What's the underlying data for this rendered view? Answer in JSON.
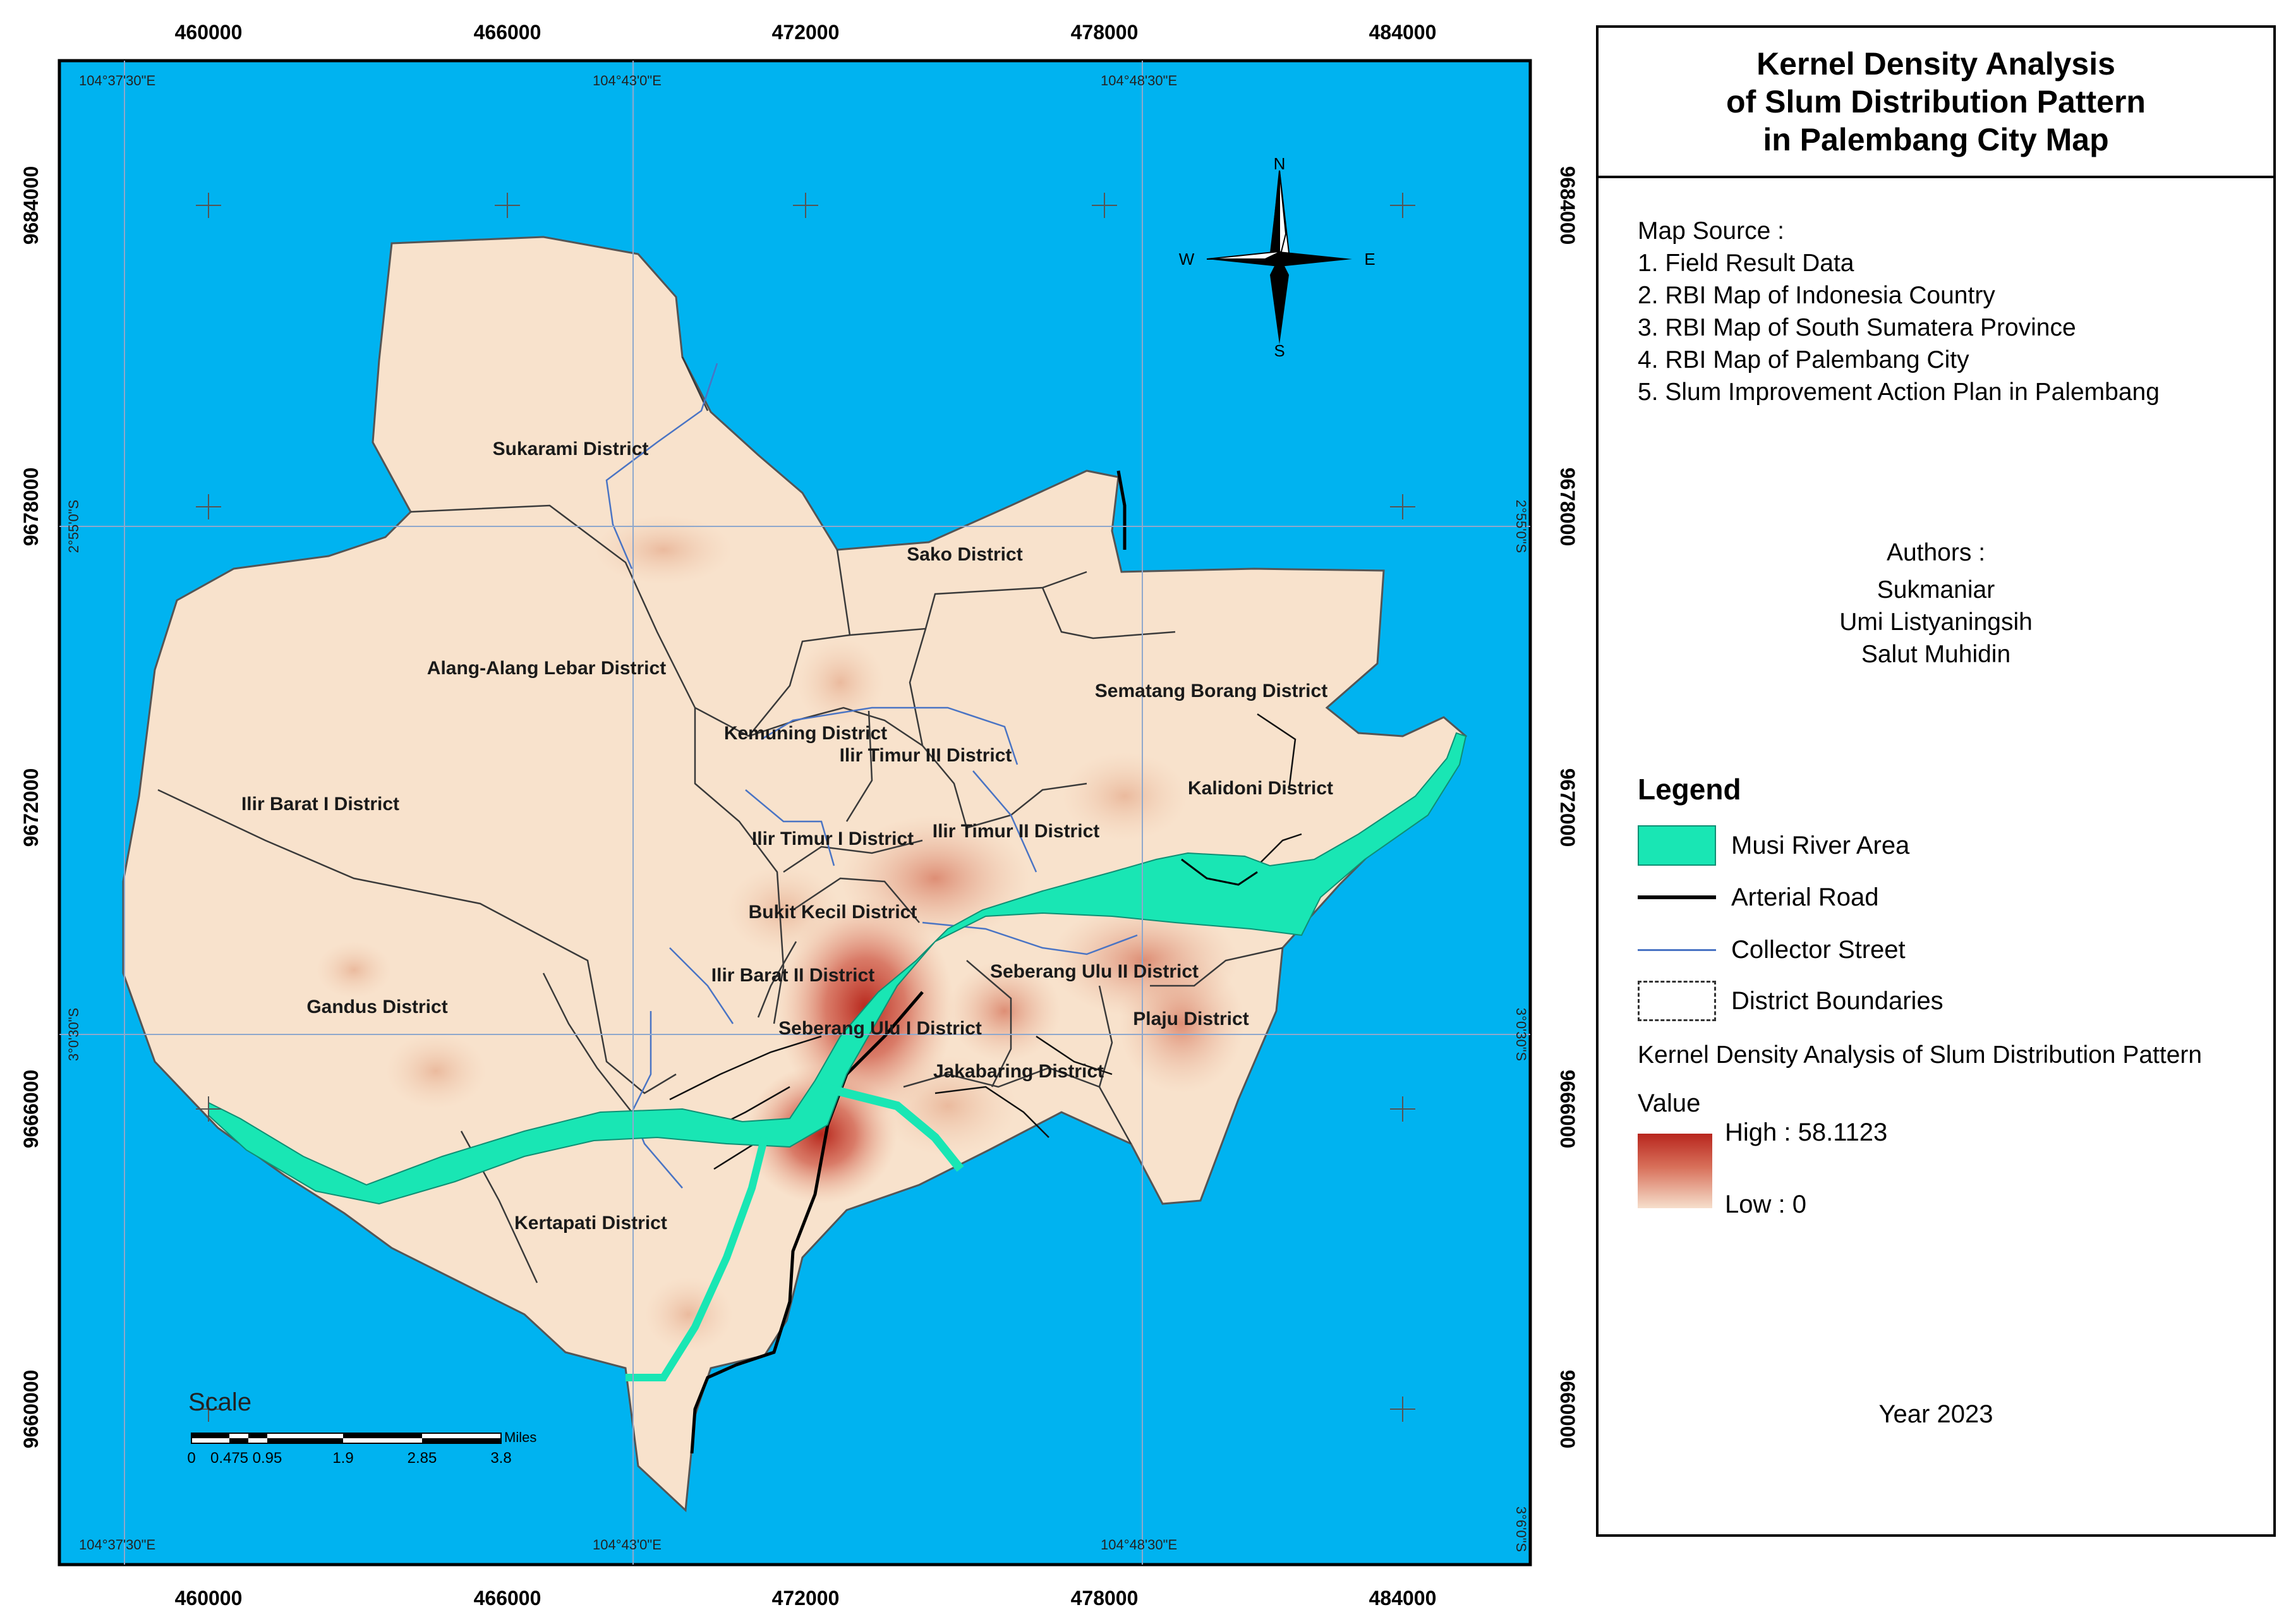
{
  "map": {
    "grid_x_labels": [
      "460000",
      "466000",
      "472000",
      "478000",
      "484000"
    ],
    "grid_y_labels": [
      "9684000",
      "9678000",
      "9672000",
      "9666000",
      "9660000"
    ],
    "lon_labels": [
      "104°37'30\"E",
      "104°43'0\"E",
      "104°48'30\"E"
    ],
    "lat_labels": [
      "2°55'0\"S",
      "3°0'30\"S",
      "3°6'0\"S"
    ],
    "districts": [
      "Sukarami District",
      "Sako District",
      "Alang-Alang Lebar District",
      "Sematang Borang District",
      "Kemuning District",
      "Ilir Timur III District",
      "Ilir Barat I District",
      "Kalidoni District",
      "Ilir Timur I District",
      "Ilir Timur II District",
      "Bukit Kecil District",
      "Ilir Barat II District",
      "Seberang Ulu II District",
      "Gandus District",
      "Plaju District",
      "Seberang Ulu I District",
      "Jakabaring District",
      "Kertapati District"
    ],
    "compass": {
      "n": "N",
      "s": "S",
      "e": "E",
      "w": "W"
    },
    "scale": {
      "title": "Scale",
      "unit": "Miles",
      "ticks": [
        "0",
        "0.475",
        "0.95",
        "1.9",
        "2.85",
        "3.8"
      ]
    },
    "colors": {
      "water": "#00b3f0",
      "land": "#f8e2cc",
      "river": "#19e6b4",
      "density_high": "#b8261e",
      "grid": "#8fa8cc"
    }
  },
  "legend": {
    "title": "Kernel Density Analysis\nof Slum Distribution Pattern\nin Palembang City Map",
    "source_heading": "Map Source :",
    "sources": [
      "1. Field Result Data",
      "2. RBI Map of Indonesia Country",
      "3. RBI Map of South Sumatera Province",
      "4. RBI Map of Palembang City",
      "5. Slum Improvement Action Plan in Palembang"
    ],
    "authors_heading": "Authors :",
    "authors": [
      "Sukmaniar",
      "Umi Listyaningsih",
      "Salut Muhidin"
    ],
    "heading": "Legend",
    "items": [
      {
        "label": "Musi River Area"
      },
      {
        "label": "Arterial Road"
      },
      {
        "label": "Collector Street"
      },
      {
        "label": "District Boundaries"
      }
    ],
    "kernel_title": "Kernel Density Analysis of Slum Distribution Pattern",
    "value_label": "Value",
    "high_label": "High : 58.1123",
    "low_label": "Low : 0",
    "year": "Year 2023"
  }
}
